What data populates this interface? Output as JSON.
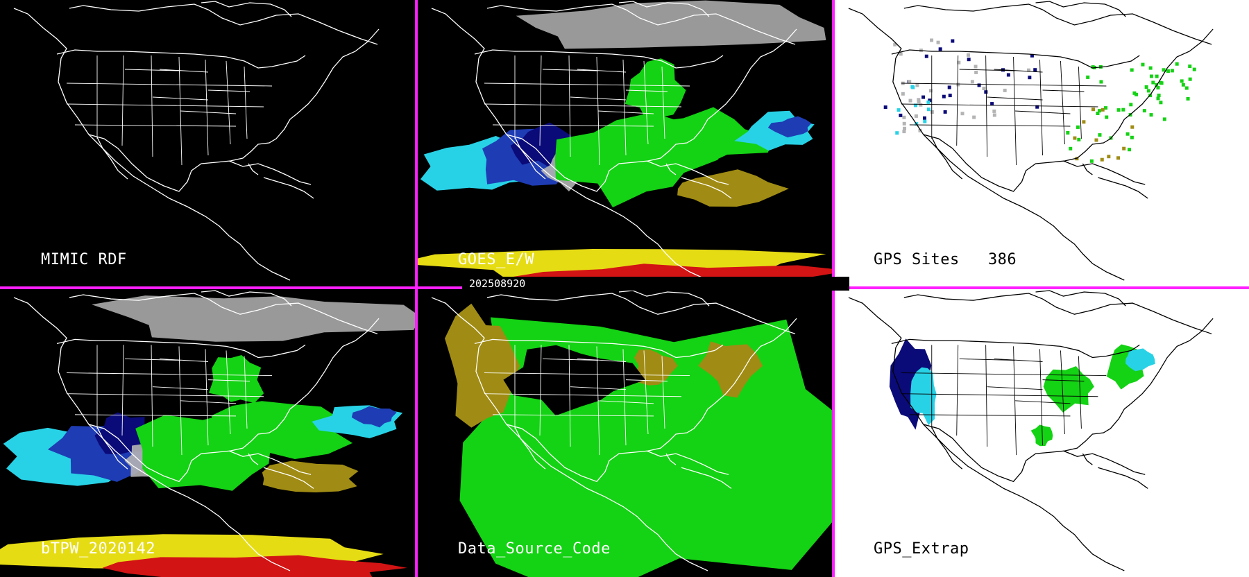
{
  "panels": [
    {
      "id": "p1",
      "label": "MIMIC RDF",
      "style": "dark",
      "layer": "none"
    },
    {
      "id": "p2",
      "label": "GOES_E/W",
      "style": "dark",
      "layer": "goes"
    },
    {
      "id": "p3",
      "label": "GPS Sites   386",
      "style": "light",
      "layer": "sites"
    },
    {
      "id": "p4",
      "label": "bTPW_2020142",
      "style": "dark",
      "layer": "btpw"
    },
    {
      "id": "p5",
      "label": "Data_Source_Code",
      "style": "dark",
      "layer": "source"
    },
    {
      "id": "p6",
      "label": "GPS_Extrap",
      "style": "light",
      "layer": "extrap"
    }
  ],
  "timestamp": "202508920",
  "colors": {
    "divider": "#ff20ff",
    "dark_background": "#000000",
    "light_background": "#ffffff",
    "outline_dark": "#ffffff",
    "outline_light": "#000000",
    "palette": {
      "gray": "#b4b4b4",
      "navy": "#0a0a78",
      "blue": "#1e3cb4",
      "cyan": "#28d2e6",
      "green": "#14d214",
      "olive": "#a08c14",
      "yellow": "#e6dc14",
      "red": "#d21414"
    }
  }
}
